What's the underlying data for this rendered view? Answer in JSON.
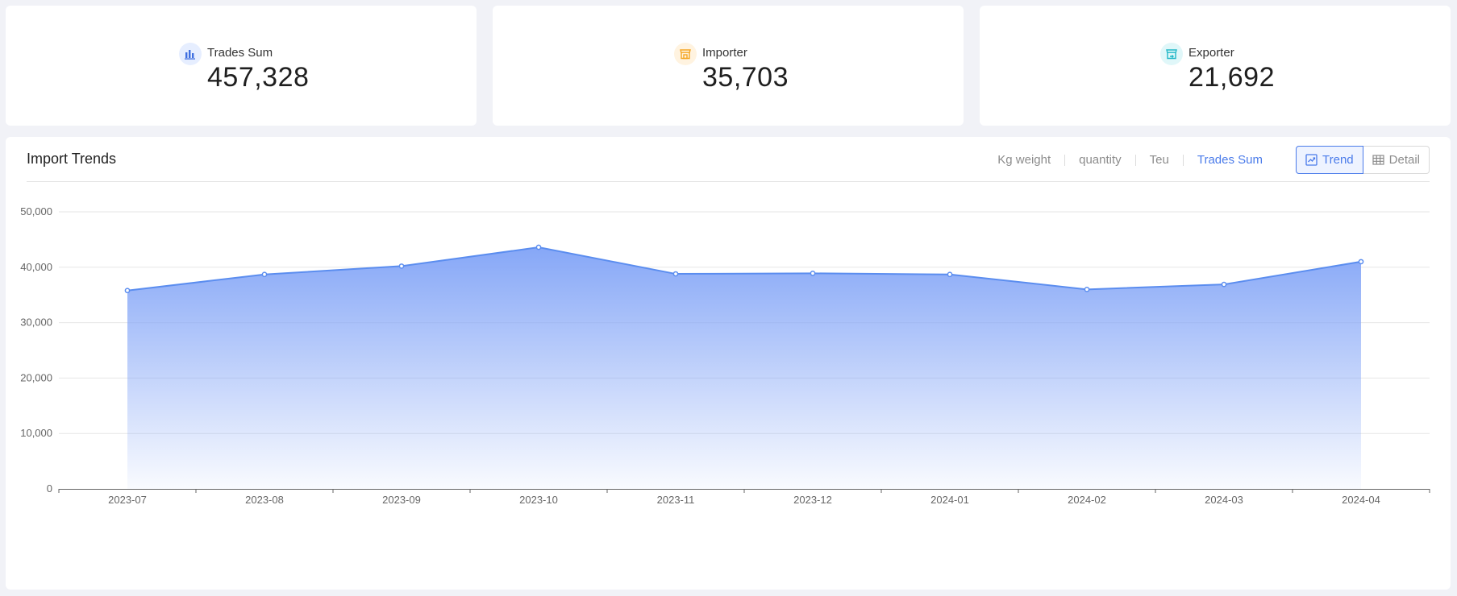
{
  "stats": [
    {
      "label": "Trades Sum",
      "value": "457,328",
      "icon": "bar-chart-icon",
      "color": "#3f6fe0",
      "bg": "#e6eeff"
    },
    {
      "label": "Importer",
      "value": "35,703",
      "icon": "store-icon",
      "color": "#f5a623",
      "bg": "#fff3e0"
    },
    {
      "label": "Exporter",
      "value": "21,692",
      "icon": "store-export-icon",
      "color": "#22b8c8",
      "bg": "#e0f7f9"
    }
  ],
  "chart_panel": {
    "title": "Import Trends",
    "metric_tabs": [
      "Kg weight",
      "quantity",
      "Teu",
      "Trades Sum"
    ],
    "active_metric": "Trades Sum",
    "view_buttons": {
      "trend": "Trend",
      "detail": "Detail"
    },
    "active_view": "Trend"
  },
  "colors": {
    "accent": "#4a7bea",
    "line": "#5b8def",
    "area_top": "#86a7f7"
  },
  "chart_data": {
    "type": "area",
    "title": "Import Trends",
    "categories": [
      "2023-07",
      "2023-08",
      "2023-09",
      "2023-10",
      "2023-11",
      "2023-12",
      "2024-01",
      "2024-02",
      "2024-03",
      "2024-04"
    ],
    "series": [
      {
        "values": [
          35800,
          38700,
          40200,
          43600,
          38800,
          38900,
          38700,
          36000,
          36900,
          41000
        ]
      }
    ],
    "ylim": [
      0,
      50000
    ],
    "yticks": [
      "0",
      "10,000",
      "20,000",
      "30,000",
      "40,000",
      "50,000"
    ],
    "grid": true,
    "legend": "none"
  }
}
